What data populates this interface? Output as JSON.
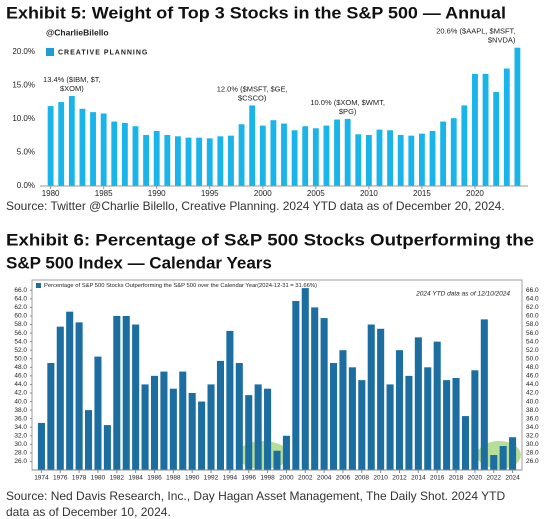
{
  "chart_data": [
    {
      "type": "bar",
      "title": "Exhibit 5: Weight of Top 3 Stocks in the S&P 500 — Annual",
      "watermark": "@CharlieBilello",
      "logo": "CREATIVE PLANNING",
      "x": [
        1980,
        1981,
        1982,
        1983,
        1984,
        1985,
        1986,
        1987,
        1988,
        1989,
        1990,
        1991,
        1992,
        1993,
        1994,
        1995,
        1996,
        1997,
        1998,
        1999,
        2000,
        2001,
        2002,
        2003,
        2004,
        2005,
        2006,
        2007,
        2008,
        2009,
        2010,
        2011,
        2012,
        2013,
        2014,
        2015,
        2016,
        2017,
        2018,
        2019,
        2020,
        2021,
        2022,
        2023,
        2024
      ],
      "values": [
        11.9,
        12.5,
        13.4,
        11.5,
        11.0,
        10.8,
        9.6,
        9.4,
        8.9,
        7.6,
        8.2,
        7.6,
        7.4,
        7.2,
        7.2,
        7.1,
        7.4,
        7.5,
        9.2,
        12.0,
        9.0,
        9.8,
        9.3,
        8.3,
        8.9,
        8.6,
        9.0,
        9.9,
        10.0,
        7.7,
        7.6,
        8.4,
        8.3,
        7.6,
        7.5,
        7.8,
        8.2,
        9.6,
        10.1,
        12.0,
        16.7,
        16.7,
        14.0,
        17.5,
        20.6
      ],
      "color": "#18b4ea",
      "xlim": [
        1979,
        2025
      ],
      "xticks": [
        1980,
        1985,
        1990,
        1995,
        2000,
        2005,
        2010,
        2015,
        2020
      ],
      "ylim": [
        0,
        21.3
      ],
      "yticks": [
        {
          "value": 0,
          "label": "0.0%"
        },
        {
          "value": 5,
          "label": "5.0%"
        },
        {
          "value": 10,
          "label": "10.0%"
        },
        {
          "value": 15,
          "label": "15.0%"
        },
        {
          "value": 20,
          "label": "20.0%"
        }
      ],
      "annotations": [
        {
          "x": 1982,
          "lines": [
            "13.4% ($IBM, $T,",
            "$XOM)"
          ]
        },
        {
          "x": 1999,
          "lines": [
            "12.0% ($MSFT, $GE,",
            "$CSCO)"
          ]
        },
        {
          "x": 2008,
          "lines": [
            "10.0% ($XOM, $WMT,",
            "$PG)"
          ]
        },
        {
          "x": 2024,
          "lines": [
            "20.6% ($AAPL, $MSFT,",
            "$NVDA)"
          ]
        }
      ],
      "source": [
        "Source: Twitter @Charlie Bilello, Creative Planning. 2024 YTD data as of December 20, 2024."
      ]
    },
    {
      "type": "bar",
      "title": [
        "Exhibit 6: Percentage of S&P 500 Stocks Outperforming the",
        "S&P 500 Index — Calendar Years"
      ],
      "legend": "Percentage of S&P 500 Stocks Outperforming the S&P 500 over the Calendar Year(2024-12-31 = 31.66%)",
      "note": "2024 YTD data as of 12/10/2024",
      "x": [
        1974,
        1975,
        1976,
        1977,
        1978,
        1979,
        1980,
        1981,
        1982,
        1983,
        1984,
        1985,
        1986,
        1987,
        1988,
        1989,
        1990,
        1991,
        1992,
        1993,
        1994,
        1995,
        1996,
        1997,
        1998,
        1999,
        2000,
        2001,
        2002,
        2003,
        2004,
        2005,
        2006,
        2007,
        2008,
        2009,
        2010,
        2011,
        2012,
        2013,
        2014,
        2015,
        2016,
        2017,
        2018,
        2019,
        2020,
        2021,
        2022,
        2023,
        2024
      ],
      "values": [
        35,
        49,
        57.5,
        61,
        58.5,
        38,
        50.5,
        34.5,
        60,
        60,
        58,
        44,
        46,
        47,
        43,
        47,
        42,
        40,
        44,
        49.5,
        56.5,
        49,
        41.5,
        44,
        43,
        28.5,
        32,
        63.5,
        66.5,
        62,
        59.5,
        49,
        52,
        48,
        45,
        58,
        57,
        44,
        52,
        46,
        55,
        48,
        54,
        45,
        45.5,
        36.6,
        47.3,
        59.2,
        27.5,
        29.6,
        31.66
      ],
      "color": "#1b6e9f",
      "xlim": [
        1973,
        2025
      ],
      "xticks": [
        1974,
        1976,
        1978,
        1980,
        1982,
        1984,
        1986,
        1988,
        1990,
        1992,
        1994,
        1996,
        1998,
        2000,
        2002,
        2004,
        2006,
        2008,
        2010,
        2012,
        2014,
        2016,
        2018,
        2020,
        2022,
        2024
      ],
      "ylim": [
        24,
        67
      ],
      "yticks": [
        {
          "value": 26,
          "label": "26.0"
        },
        {
          "value": 28,
          "label": "28.0"
        },
        {
          "value": 30,
          "label": "30.0"
        },
        {
          "value": 32,
          "label": "32.0"
        },
        {
          "value": 34,
          "label": "34.0"
        },
        {
          "value": 36,
          "label": "36.0"
        },
        {
          "value": 38,
          "label": "38.0"
        },
        {
          "value": 40,
          "label": "40.0"
        },
        {
          "value": 42,
          "label": "42.0"
        },
        {
          "value": 44,
          "label": "44.0"
        },
        {
          "value": 46,
          "label": "46.0"
        },
        {
          "value": 48,
          "label": "48.0"
        },
        {
          "value": 50,
          "label": "50.0"
        },
        {
          "value": 52,
          "label": "52.0"
        },
        {
          "value": 54,
          "label": "54.0"
        },
        {
          "value": 56,
          "label": "56.0"
        },
        {
          "value": 58,
          "label": "58.0"
        },
        {
          "value": 60,
          "label": "60.0"
        },
        {
          "value": 62,
          "label": "62.0"
        },
        {
          "value": 64,
          "label": "64.0"
        },
        {
          "value": 66,
          "label": "66.0"
        }
      ],
      "source": [
        "Source: Ned Davis Research, Inc., Day Hagan Asset Management, The Daily Shot. 2024 YTD",
        "data as of December 10, 2024."
      ]
    }
  ]
}
